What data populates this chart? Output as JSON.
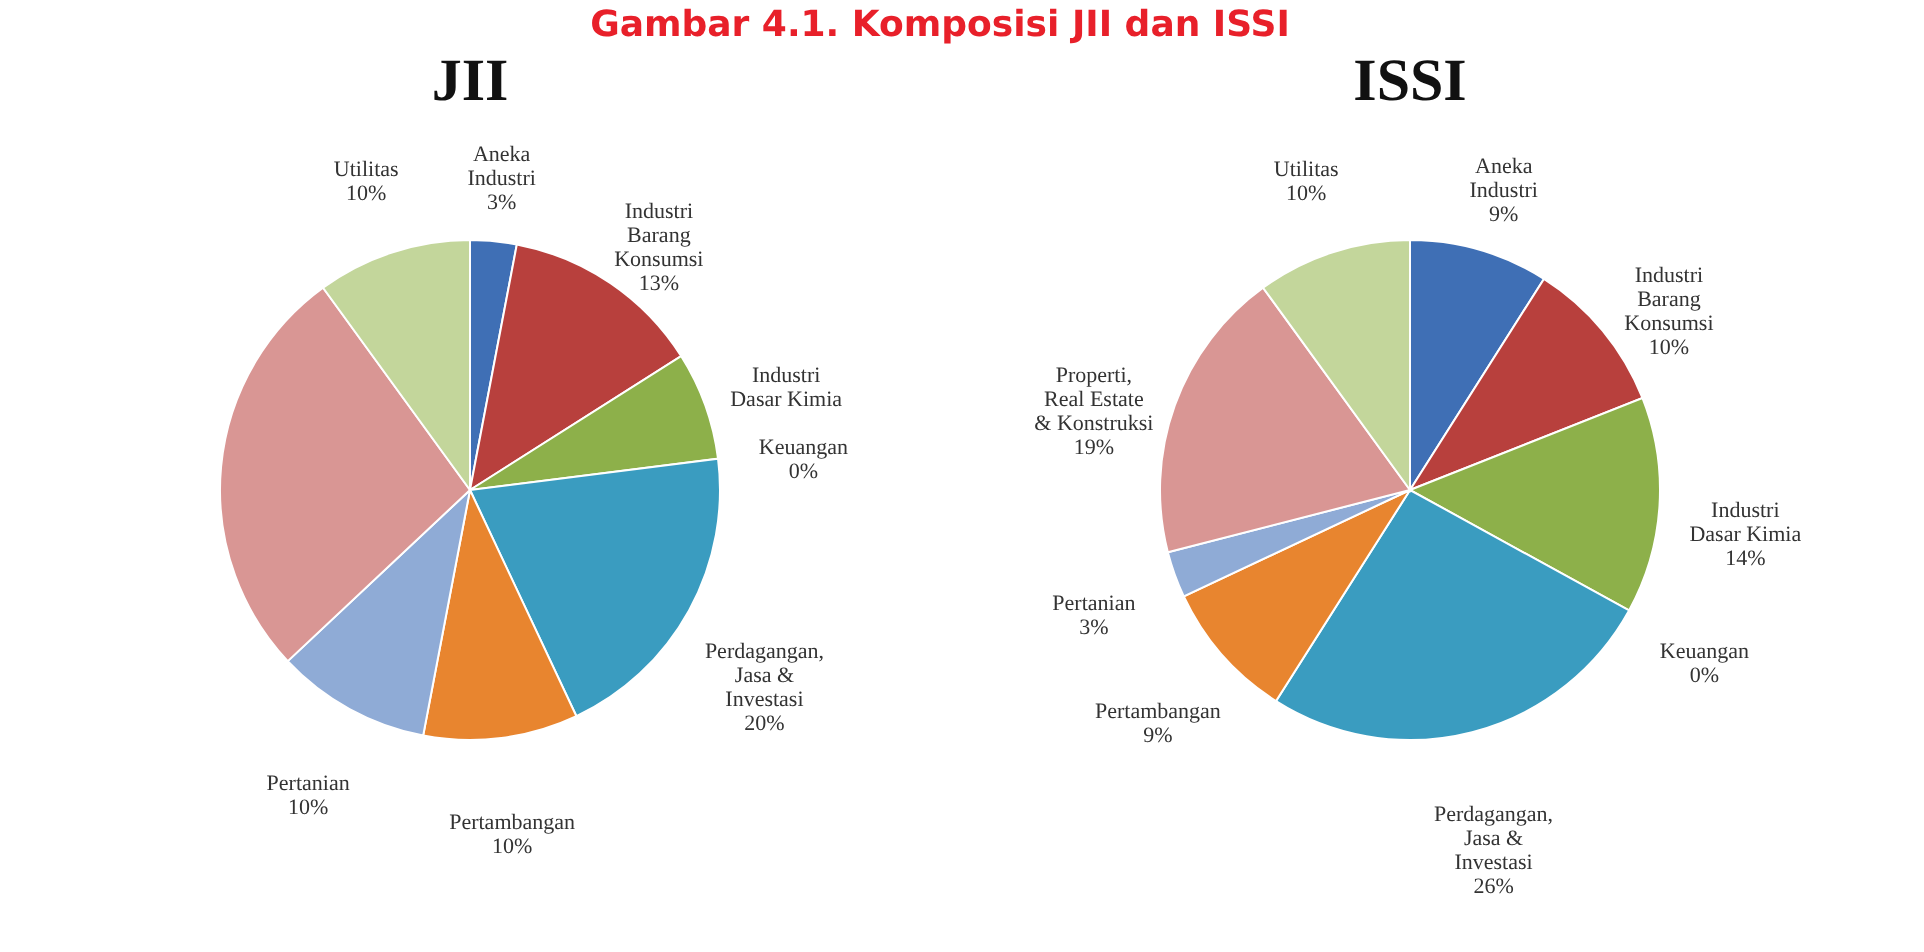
{
  "chart_data": [
    {
      "type": "pie",
      "title": "JII",
      "annotations": [
        "Gambar 4.1. Komposisi JII dan ISSI"
      ],
      "categories": [
        "Aneka Industri",
        "Industri Barang Konsumsi",
        "Industri Dasar Kimia",
        "Keuangan",
        "Perdagangan, Jasa & Investasi",
        "Pertambangan",
        "Pertanian",
        null,
        "Utilitas"
      ],
      "values": [
        3,
        13,
        7,
        0,
        20,
        10,
        10,
        27,
        10
      ],
      "value_labels": [
        "3%",
        "13%",
        null,
        "0%",
        "20%",
        "10%",
        "10%",
        null,
        "10%"
      ],
      "colors": [
        "#3f6fb5",
        "#b8403d",
        "#8db04a",
        "#7a5d9e",
        "#3a9cc0",
        "#e8852f",
        "#8fabd6",
        "#d99694",
        "#c3d69b"
      ]
    },
    {
      "type": "pie",
      "title": "ISSI",
      "categories": [
        "Aneka Industri",
        "Industri Barang Konsumsi",
        "Industri Dasar Kimia",
        "Keuangan",
        "Perdagangan, Jasa & Investasi",
        "Pertambangan",
        "Pertanian",
        "Properti, Real Estate & Konstruksi",
        "Utilitas"
      ],
      "values": [
        9,
        10,
        14,
        0,
        26,
        9,
        3,
        19,
        10
      ],
      "value_labels": [
        "9%",
        "10%",
        "14%",
        "0%",
        "26%",
        "9%",
        "3%",
        "19%",
        "10%"
      ],
      "colors": [
        "#3f6fb5",
        "#b8403d",
        "#8db04a",
        "#7a5d9e",
        "#3a9cc0",
        "#e8852f",
        "#8fabd6",
        "#d99694",
        "#c3d69b"
      ]
    }
  ]
}
